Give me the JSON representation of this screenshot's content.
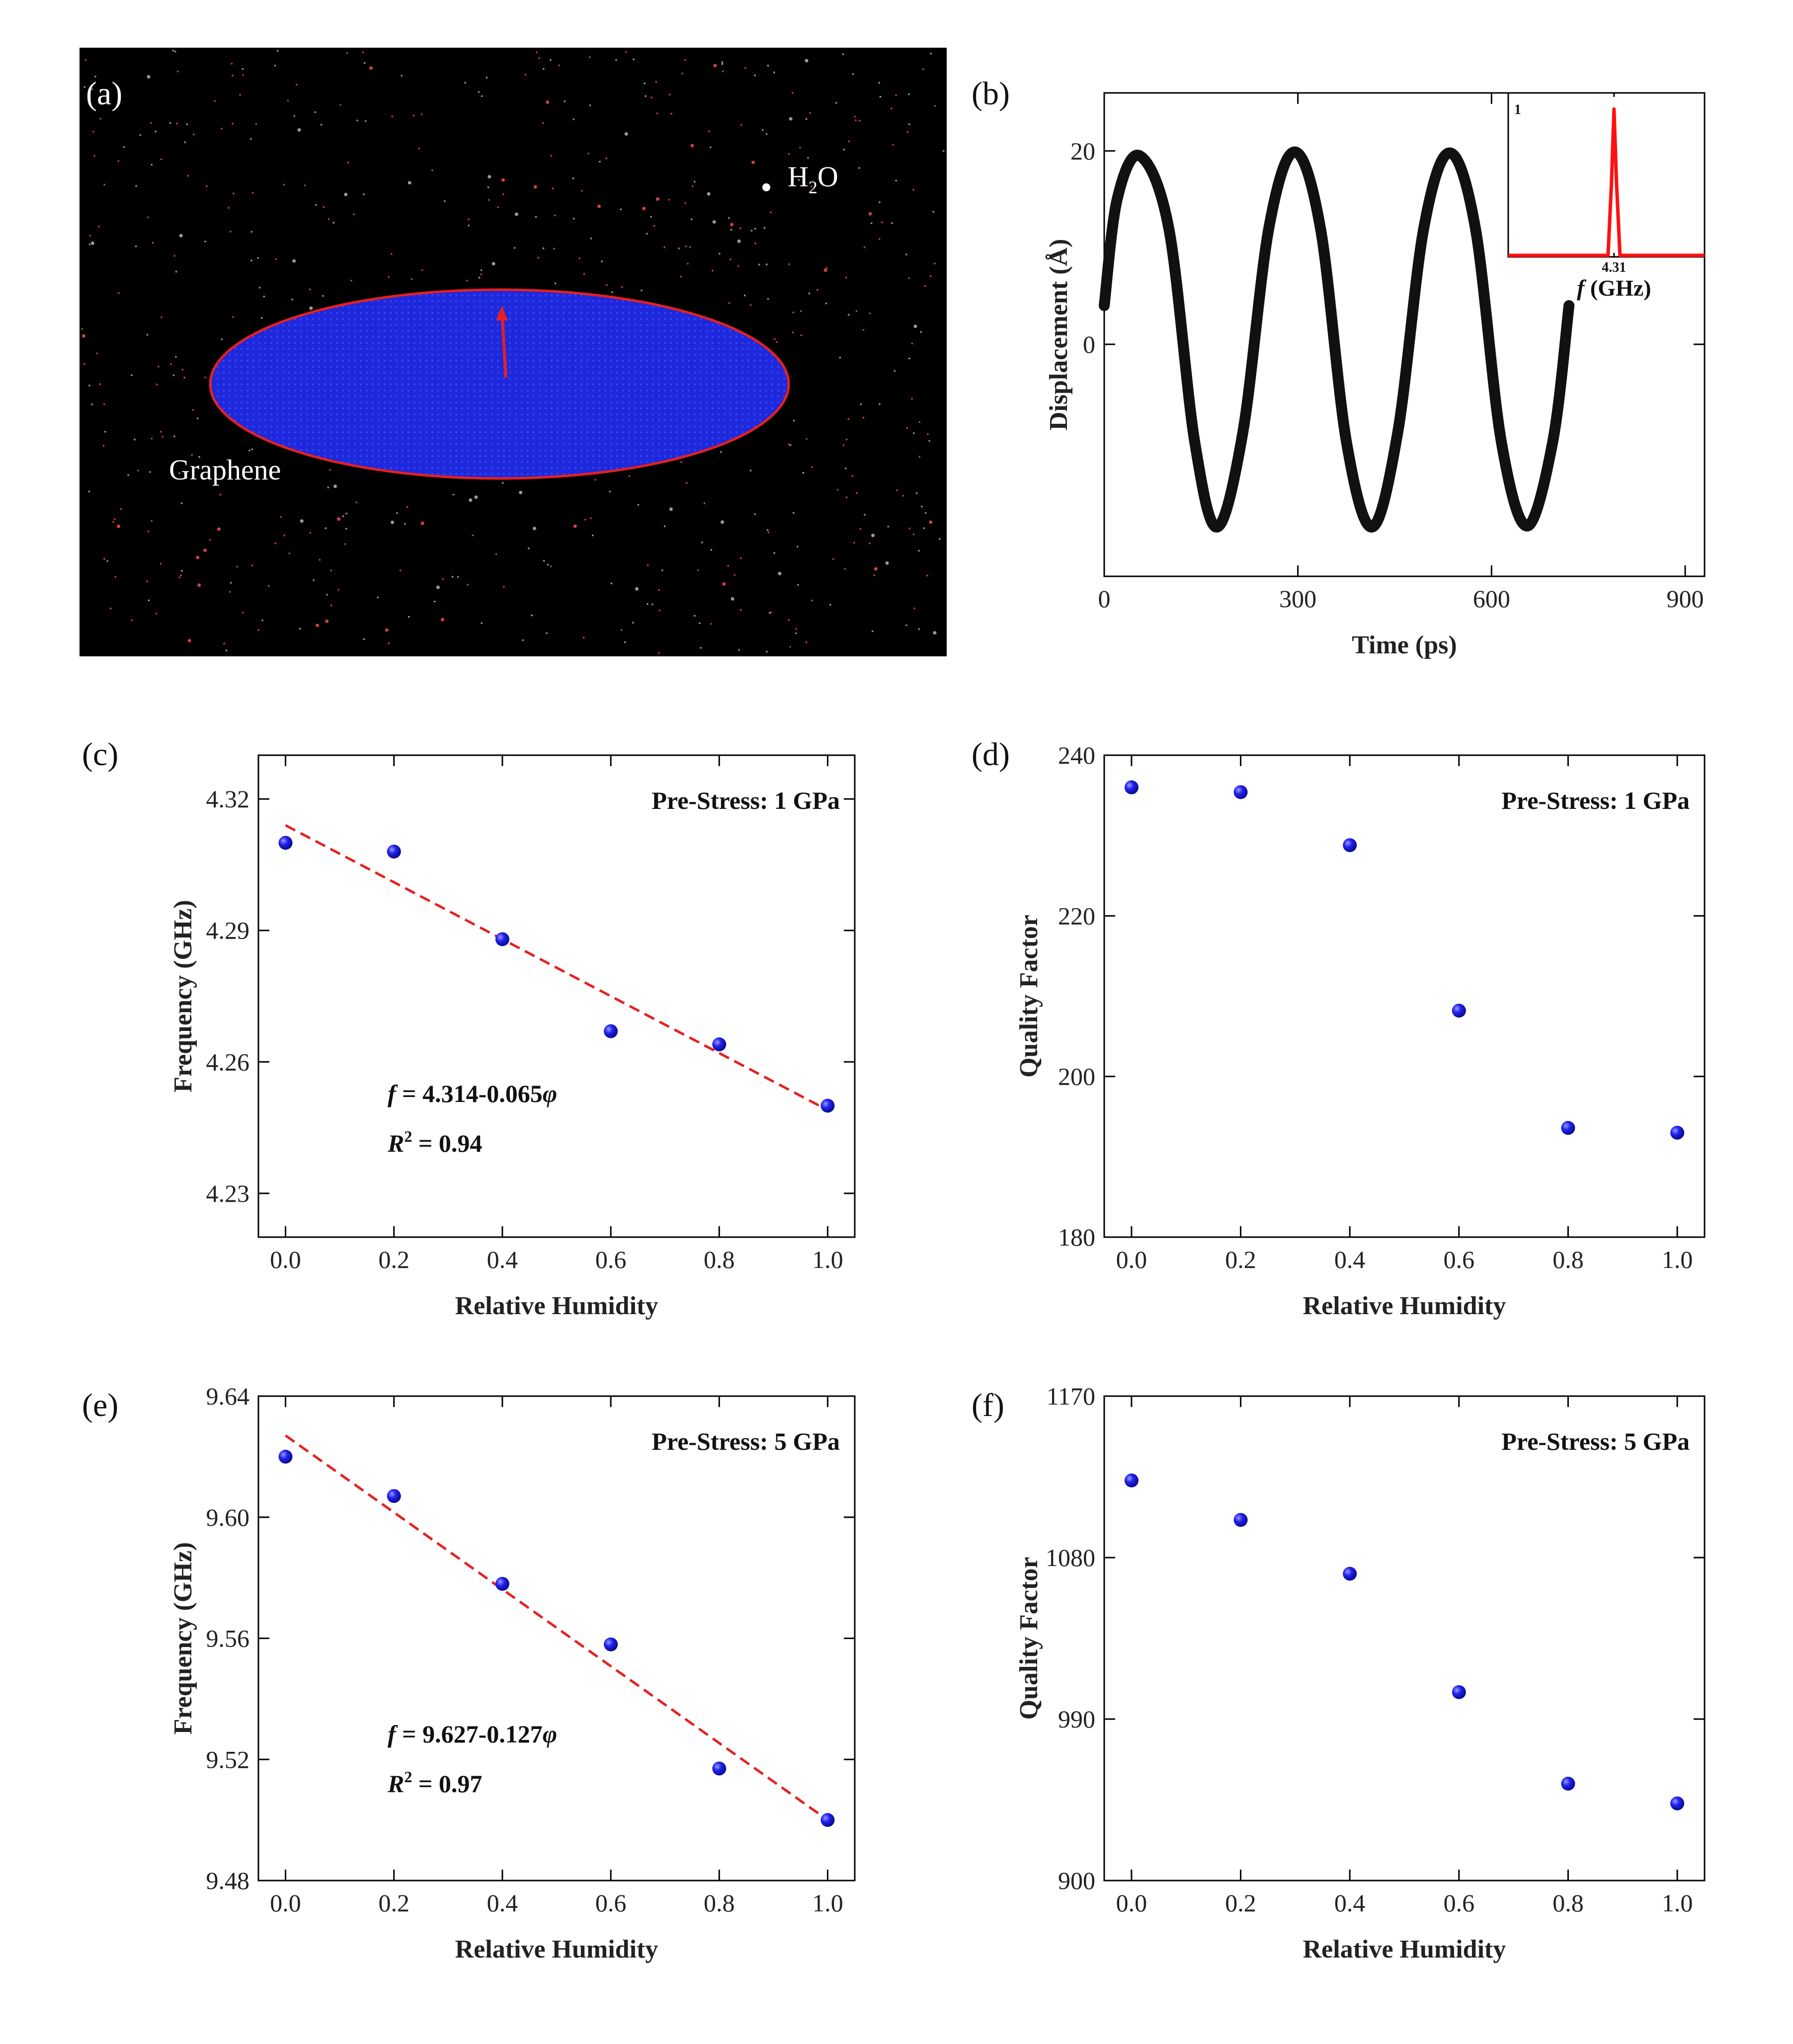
{
  "colors": {
    "point": "#1515e0",
    "fit": "#e62020",
    "sheet": "#1e28dc",
    "sheet_edge": "#e62020",
    "wave": "#111111",
    "spectrum": "#ff1010"
  },
  "panel_a": {
    "label": "(a)",
    "water_label": "H",
    "water_sub": "2",
    "water_suffix": "O",
    "sheet_label": "Graphene"
  },
  "chart_data": [
    {
      "id": "b",
      "label": "(b)",
      "type": "line",
      "xlabel": "Time (ps)",
      "ylabel": "Displacement (Å)",
      "xlim": [
        0,
        930
      ],
      "ylim": [
        -24,
        26
      ],
      "xticks": [
        0,
        300,
        600,
        900
      ],
      "yticks": [
        20,
        0
      ],
      "series": [
        {
          "x": [
            0,
            20,
            55,
            100,
            140,
            175,
            215,
            255,
            295,
            335,
            375,
            415,
            455,
            495,
            535,
            575,
            615,
            655,
            695,
            720
          ],
          "y": [
            4,
            15,
            19.5,
            12,
            -10,
            -18.9,
            -9,
            12,
            19.9,
            12,
            -10,
            -18.9,
            -9,
            12,
            19.8,
            12,
            -10,
            -18.8,
            -10,
            4
          ]
        }
      ],
      "inset": {
        "xlabel_italic": "f",
        "xlabel_rest": " (GHz)",
        "xtick": "4.31",
        "ytick": "1",
        "peak_x": 4.31,
        "peak_y": 1,
        "xlim": [
          0,
          8
        ],
        "ylim": [
          0,
          1.1
        ]
      }
    },
    {
      "id": "c",
      "label": "(c)",
      "type": "scatter",
      "xlabel": "Relative Humidity",
      "ylabel": "Frequency (GHz)",
      "xlim": [
        -0.05,
        1.05
      ],
      "ylim": [
        4.22,
        4.33
      ],
      "xticks": [
        "0.0",
        "0.2",
        "0.4",
        "0.6",
        "0.8",
        "1.0"
      ],
      "yticks": [
        "4.32",
        "4.29",
        "4.26",
        "4.23"
      ],
      "x": [
        0.0,
        0.2,
        0.4,
        0.6,
        0.8,
        1.0
      ],
      "y": [
        4.31,
        4.308,
        4.288,
        4.267,
        4.264,
        4.25
      ],
      "fit": {
        "intercept": 4.314,
        "slope": -0.065
      },
      "annotation": "Pre-Stress: 1 GPa",
      "eq_italic": "f",
      "eq_text": " = 4.314-0.065",
      "eq_var": "φ",
      "r2_italic": "R",
      "r2_sup": "2",
      "r2_text": " = 0.94"
    },
    {
      "id": "d",
      "label": "(d)",
      "type": "scatter",
      "xlabel": "Relative Humidity",
      "ylabel": "Quality Factor",
      "xlim": [
        -0.05,
        1.05
      ],
      "ylim": [
        180,
        240
      ],
      "xticks": [
        "0.0",
        "0.2",
        "0.4",
        "0.6",
        "0.8",
        "1.0"
      ],
      "yticks": [
        "240",
        "220",
        "200",
        "180"
      ],
      "x": [
        0.0,
        0.2,
        0.4,
        0.6,
        0.8,
        1.0
      ],
      "y": [
        236,
        235.4,
        228.8,
        208.2,
        193.6,
        193.0
      ],
      "annotation": "Pre-Stress: 1 GPa"
    },
    {
      "id": "e",
      "label": "(e)",
      "type": "scatter",
      "xlabel": "Relative Humidity",
      "ylabel": "Frequency (GHz)",
      "xlim": [
        -0.05,
        1.05
      ],
      "ylim": [
        9.48,
        9.64
      ],
      "xticks": [
        "0.0",
        "0.2",
        "0.4",
        "0.6",
        "0.8",
        "1.0"
      ],
      "yticks": [
        "9.64",
        "9.60",
        "9.56",
        "9.52",
        "9.48"
      ],
      "x": [
        0.0,
        0.2,
        0.4,
        0.6,
        0.8,
        1.0
      ],
      "y": [
        9.62,
        9.607,
        9.578,
        9.558,
        9.517,
        9.5
      ],
      "fit": {
        "intercept": 9.627,
        "slope": -0.127
      },
      "annotation": "Pre-Stress: 5 GPa",
      "eq_italic": "f",
      "eq_text": " = 9.627-0.127",
      "eq_var": "φ",
      "r2_italic": "R",
      "r2_sup": "2",
      "r2_text": " = 0.97"
    },
    {
      "id": "f",
      "label": "(f)",
      "type": "scatter",
      "xlabel": "Relative Humidity",
      "ylabel": "Quality Factor",
      "xlim": [
        -0.05,
        1.05
      ],
      "ylim": [
        900,
        1170
      ],
      "xticks": [
        "0.0",
        "0.2",
        "0.4",
        "0.6",
        "0.8",
        "1.0"
      ],
      "yticks": [
        "1170",
        "1080",
        "990",
        "900"
      ],
      "x": [
        0.0,
        0.2,
        0.4,
        0.6,
        0.8,
        1.0
      ],
      "y": [
        1123,
        1101,
        1071,
        1005,
        954,
        943
      ],
      "annotation": "Pre-Stress: 5 GPa"
    }
  ]
}
